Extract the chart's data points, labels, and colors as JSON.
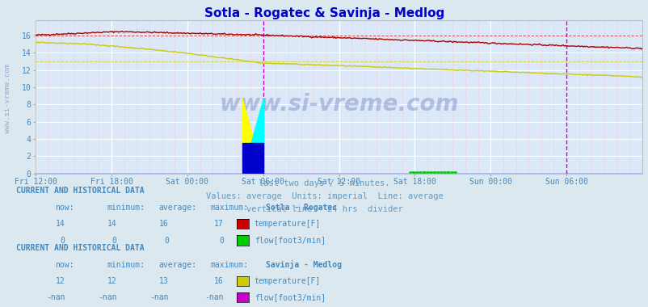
{
  "title": "Sotla - Rogatec & Savinja - Medlog",
  "title_color": "#0000cc",
  "bg_color": "#dce8f0",
  "plot_bg_color": "#dce8f0",
  "xlim": [
    0,
    576
  ],
  "ylim": [
    0,
    17.8
  ],
  "yticks": [
    0,
    2,
    4,
    6,
    8,
    10,
    12,
    14,
    16
  ],
  "xtick_labels": [
    "Fri 12:00",
    "Fri 18:00",
    "Sat 00:00",
    "Sat 06:00",
    "Sat 12:00",
    "Sat 18:00",
    "Sun 00:00",
    "Sun 06:00"
  ],
  "xtick_positions": [
    0,
    72,
    144,
    216,
    288,
    360,
    432,
    504
  ],
  "subtitle_lines": [
    "last two days / 5 minutes.",
    "Values: average  Units: imperial  Line: average",
    "vertical line - 24 hrs  divider"
  ],
  "subtitle_color": "#6699bb",
  "watermark": "www.si-vreme.com",
  "vertical_line_x": 216,
  "vertical_line_color": "#cc00cc",
  "right_line_x": 504,
  "rogatec_temp_color": "#aa0000",
  "rogatec_flow_color": "#00aa00",
  "medlog_temp_color": "#cccc00",
  "medlog_flow_color": "#cc00cc",
  "rogatec_temp_avg": 16.0,
  "medlog_temp_avg": 13.0,
  "table1_title": "Sotla - Rogatec",
  "table1_rows": [
    {
      "label": "temperature[F]",
      "color": "#cc0000",
      "now": "14",
      "min": "14",
      "avg": "16",
      "max": "17"
    },
    {
      "label": "flow[foot3/min]",
      "color": "#00cc00",
      "now": "0",
      "min": "0",
      "avg": "0",
      "max": "0"
    }
  ],
  "table2_title": "Savinja - Medlog",
  "table2_rows": [
    {
      "label": "temperature[F]",
      "color": "#cccc00",
      "now": "12",
      "min": "12",
      "avg": "13",
      "max": "16"
    },
    {
      "label": "flow[foot3/min]",
      "color": "#cc00cc",
      "now": "-nan",
      "min": "-nan",
      "avg": "-nan",
      "max": "-nan"
    }
  ],
  "table_header": "CURRENT AND HISTORICAL DATA",
  "table_col_headers": [
    "now:",
    "minimum:",
    "average:",
    "maximum:"
  ],
  "table_color": "#4488bb"
}
